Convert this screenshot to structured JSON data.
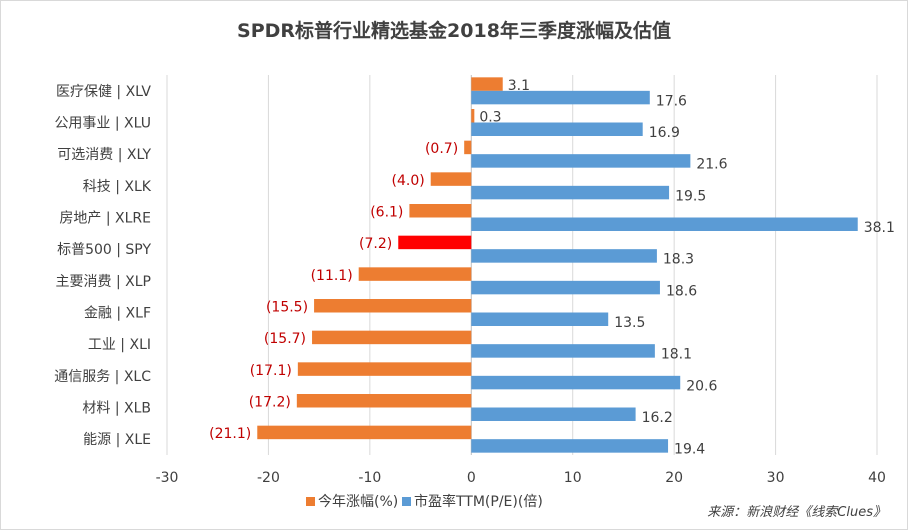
{
  "chart_data": {
    "type": "bar",
    "orientation": "horizontal",
    "title": "SPDR标普行业精选基金2018年三季度涨幅及估值",
    "categories": [
      "医疗保健 | XLV",
      "公用事业 | XLU",
      "可选消费 | XLY",
      "科技 | XLK",
      "房地产 | XLRE",
      "标普500 | SPY",
      "主要消费 | XLP",
      "金融 | XLF",
      "工业 | XLI",
      "通信服务 | XLC",
      "材料 | XLB",
      "能源 | XLE"
    ],
    "series": [
      {
        "name": "今年涨幅(%)",
        "color": "#ED7D31",
        "highlight": {
          "index": 5,
          "color": "#FF0000"
        },
        "label_color": "#C00000",
        "values": [
          3.1,
          0.3,
          -0.7,
          -4.0,
          -6.1,
          -7.2,
          -11.1,
          -15.5,
          -15.7,
          -17.1,
          -17.2,
          -21.1
        ],
        "labels": [
          "3.1",
          "0.3",
          "(0.7)",
          "(4.0)",
          "(6.1)",
          "(7.2)",
          "(11.1)",
          "(15.5)",
          "(15.7)",
          "(17.1)",
          "(17.2)",
          "(21.1)"
        ]
      },
      {
        "name": "市盈率TTM(P/E)(倍)",
        "color": "#5B9BD5",
        "label_color": "#404040",
        "values": [
          17.6,
          16.9,
          21.6,
          19.5,
          38.1,
          18.3,
          18.6,
          13.5,
          18.1,
          20.6,
          16.2,
          19.4
        ],
        "labels": [
          "17.6",
          "16.9",
          "21.6",
          "19.5",
          "38.1",
          "18.3",
          "18.6",
          "13.5",
          "18.1",
          "20.6",
          "16.2",
          "19.4"
        ]
      }
    ],
    "xlim": [
      -30,
      40
    ],
    "xticks": [
      -30,
      -20,
      -10,
      0,
      10,
      20,
      30,
      40
    ],
    "xticklabels": [
      "-30",
      "-20",
      "-10",
      "0",
      "10",
      "20",
      "30",
      "40"
    ],
    "gridlines": "vertical",
    "legend_position": "bottom",
    "source_note": "来源：新浪财经《线索Clues》"
  }
}
